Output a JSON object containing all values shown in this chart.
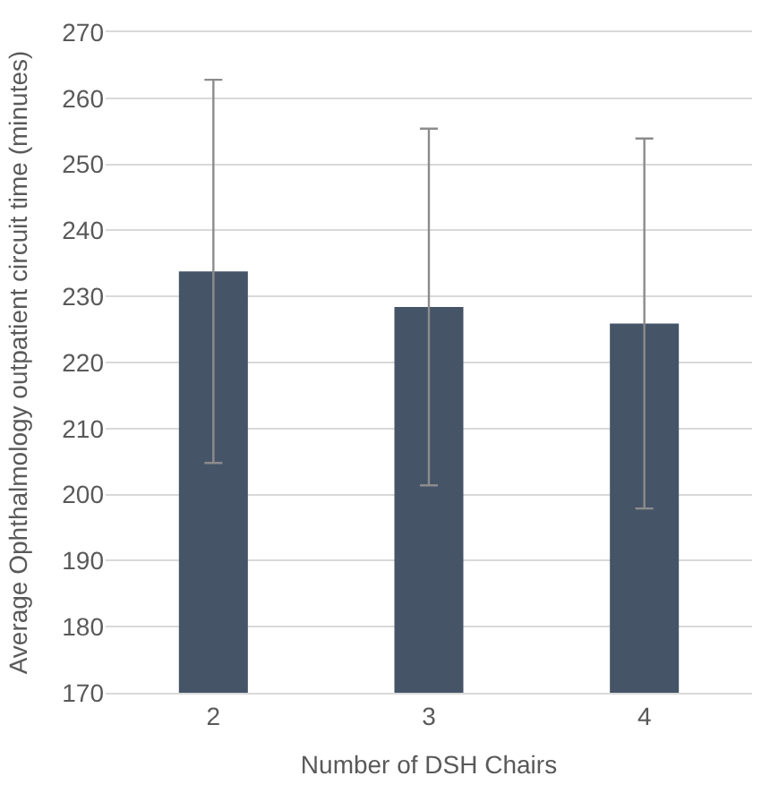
{
  "chart_data": {
    "type": "bar",
    "xlabel": "Number of DSH Chairs",
    "ylabel": "Average Ophthalmology outpatient circuit time (minutes)",
    "categories": [
      "2",
      "3",
      "4"
    ],
    "values": [
      233.8,
      228.4,
      225.9
    ],
    "errors": [
      29,
      27,
      28
    ],
    "color": "#465468",
    "ylim": [
      170,
      270
    ],
    "yticks": [
      170,
      180,
      190,
      200,
      210,
      220,
      230,
      240,
      250,
      260,
      270
    ],
    "grid": "y"
  }
}
